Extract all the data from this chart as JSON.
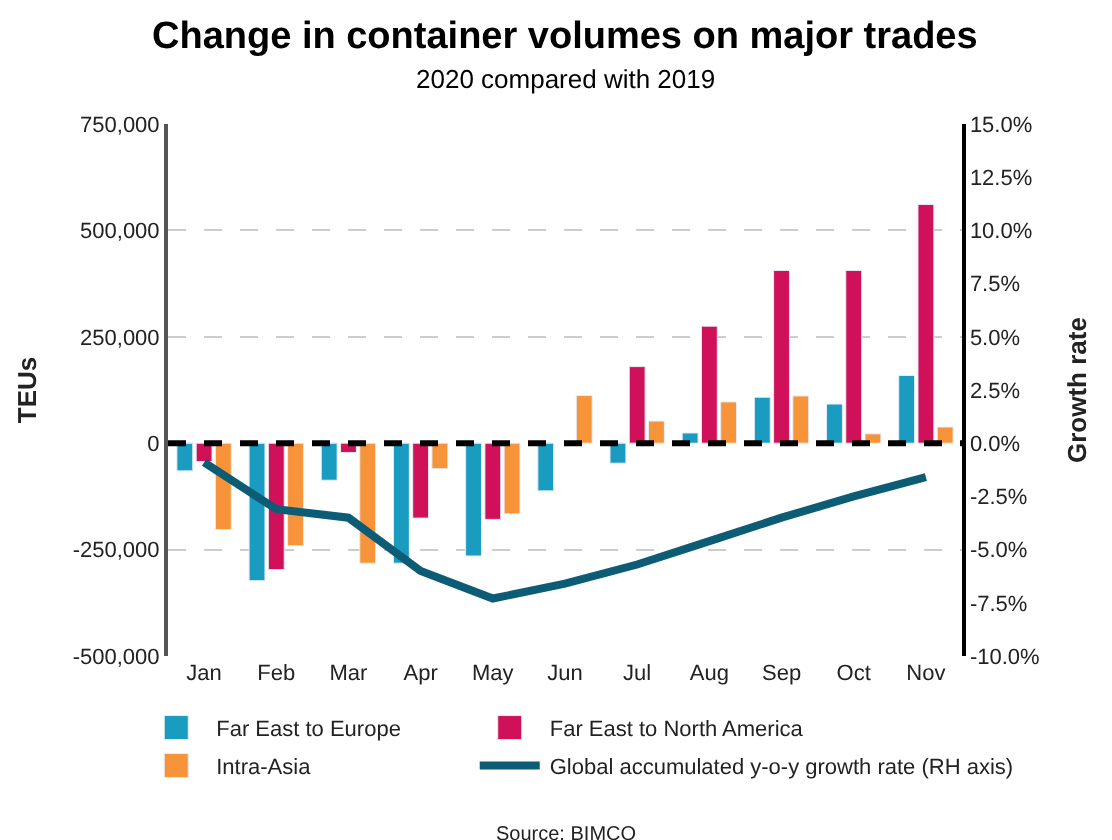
{
  "chart_data": {
    "type": "bar",
    "title": "Change in container volumes on major trades",
    "subtitle": "2020 compared with 2019",
    "ylabel": "TEUs",
    "y2label": "Growth rate",
    "categories": [
      "Jan",
      "Feb",
      "Mar",
      "Apr",
      "May",
      "Jun",
      "Jul",
      "Aug",
      "Sep",
      "Oct",
      "Nov"
    ],
    "series": [
      {
        "name": "Far East to Europe",
        "color": "#1a9bc0",
        "values": [
          -65000,
          -323000,
          -87000,
          -282000,
          -265000,
          -112000,
          -47000,
          24000,
          108000,
          92000,
          159000
        ]
      },
      {
        "name": "Far East to North America",
        "color": "#d1105a",
        "values": [
          -43000,
          -297000,
          -22000,
          -176000,
          -179000,
          null,
          180000,
          275000,
          406000,
          406000,
          561000
        ]
      },
      {
        "name": "Intra-Asia",
        "color": "#f7943a",
        "values": [
          -203000,
          -241000,
          -282000,
          -60000,
          -166000,
          112000,
          52000,
          97000,
          111000,
          22000,
          38000
        ]
      },
      {
        "name": "Global accumulated y-o-y growth rate (RH axis)",
        "type": "line",
        "axis": "y2",
        "color": "#0d5c75",
        "values": [
          -0.9,
          -3.1,
          -3.5,
          -6.0,
          -7.3,
          -6.6,
          -5.7,
          -4.6,
          -3.5,
          -2.5,
          -1.6
        ]
      }
    ],
    "ylim": [
      -500000,
      750000
    ],
    "yticks": [
      {
        "value": -500000,
        "label": "-500,000"
      },
      {
        "value": -250000,
        "label": "-250,000"
      },
      0,
      {
        "value": 250000,
        "label": "250,000"
      },
      {
        "value": 500000,
        "label": "500,000"
      },
      {
        "value": 750000,
        "label": "750,000"
      }
    ],
    "y2lim": [
      -10,
      15
    ],
    "y2ticks": [
      {
        "value": -10,
        "label": "-10.0%"
      },
      {
        "value": -7.5,
        "label": "-7.5%"
      },
      {
        "value": -5,
        "label": "-5.0%"
      },
      {
        "value": -2.5,
        "label": "-2.5%"
      },
      {
        "value": 0,
        "label": "0.0%"
      },
      {
        "value": 2.5,
        "label": "2.5%"
      },
      {
        "value": 5,
        "label": "5.0%"
      },
      {
        "value": 7.5,
        "label": "7.5%"
      },
      {
        "value": 10,
        "label": "10.0%"
      },
      {
        "value": 12.5,
        "label": "12.5%"
      },
      {
        "value": 15,
        "label": "15.0%"
      }
    ],
    "ref_lines": [
      {
        "axis": "y",
        "value": 0,
        "color": "#000000",
        "line_style": "dashed"
      }
    ],
    "grid": "y",
    "legend": "bottom",
    "annotations": [
      "Source: BIMCO"
    ]
  }
}
